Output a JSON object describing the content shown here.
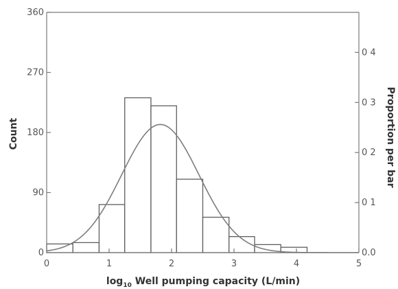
{
  "chart_data": {
    "type": "bar",
    "subtype": "histogram",
    "xlabel": {
      "prefix": "log",
      "subscript": "10",
      "rest": " Well pumping capacity (L/min)"
    },
    "ylabel": "Count",
    "y2label": "Proportion per bar",
    "xlim": [
      0,
      5
    ],
    "ylim": [
      0,
      360
    ],
    "y2lim": [
      0,
      0.48
    ],
    "xticks": [
      0,
      1,
      2,
      3,
      4,
      5
    ],
    "xtick_labels": [
      "0",
      "1",
      "2",
      "3",
      "4",
      "5"
    ],
    "yticks": [
      0,
      90,
      180,
      270,
      360
    ],
    "ytick_labels": [
      "0",
      "90",
      "180",
      "270",
      "360"
    ],
    "y2ticks": [
      0,
      0.1,
      0.2,
      0.3,
      0.4
    ],
    "y2tick_labels": [
      "0.0",
      "0 1",
      "0 2",
      "0 3",
      "0 4"
    ],
    "grid": false,
    "bins": [
      {
        "x0": 0.0,
        "x1": 0.42,
        "count": 13
      },
      {
        "x0": 0.42,
        "x1": 0.84,
        "count": 15
      },
      {
        "x0": 0.84,
        "x1": 1.25,
        "count": 72
      },
      {
        "x0": 1.25,
        "x1": 1.67,
        "count": 232
      },
      {
        "x0": 1.67,
        "x1": 2.08,
        "count": 220
      },
      {
        "x0": 2.08,
        "x1": 2.5,
        "count": 110
      },
      {
        "x0": 2.5,
        "x1": 2.92,
        "count": 53
      },
      {
        "x0": 2.92,
        "x1": 3.33,
        "count": 24
      },
      {
        "x0": 3.33,
        "x1": 3.75,
        "count": 12
      },
      {
        "x0": 3.75,
        "x1": 4.17,
        "count": 8
      }
    ],
    "fitted_curve": {
      "type": "normal",
      "mean": 1.82,
      "sd": 0.62,
      "peak_count": 192
    }
  }
}
